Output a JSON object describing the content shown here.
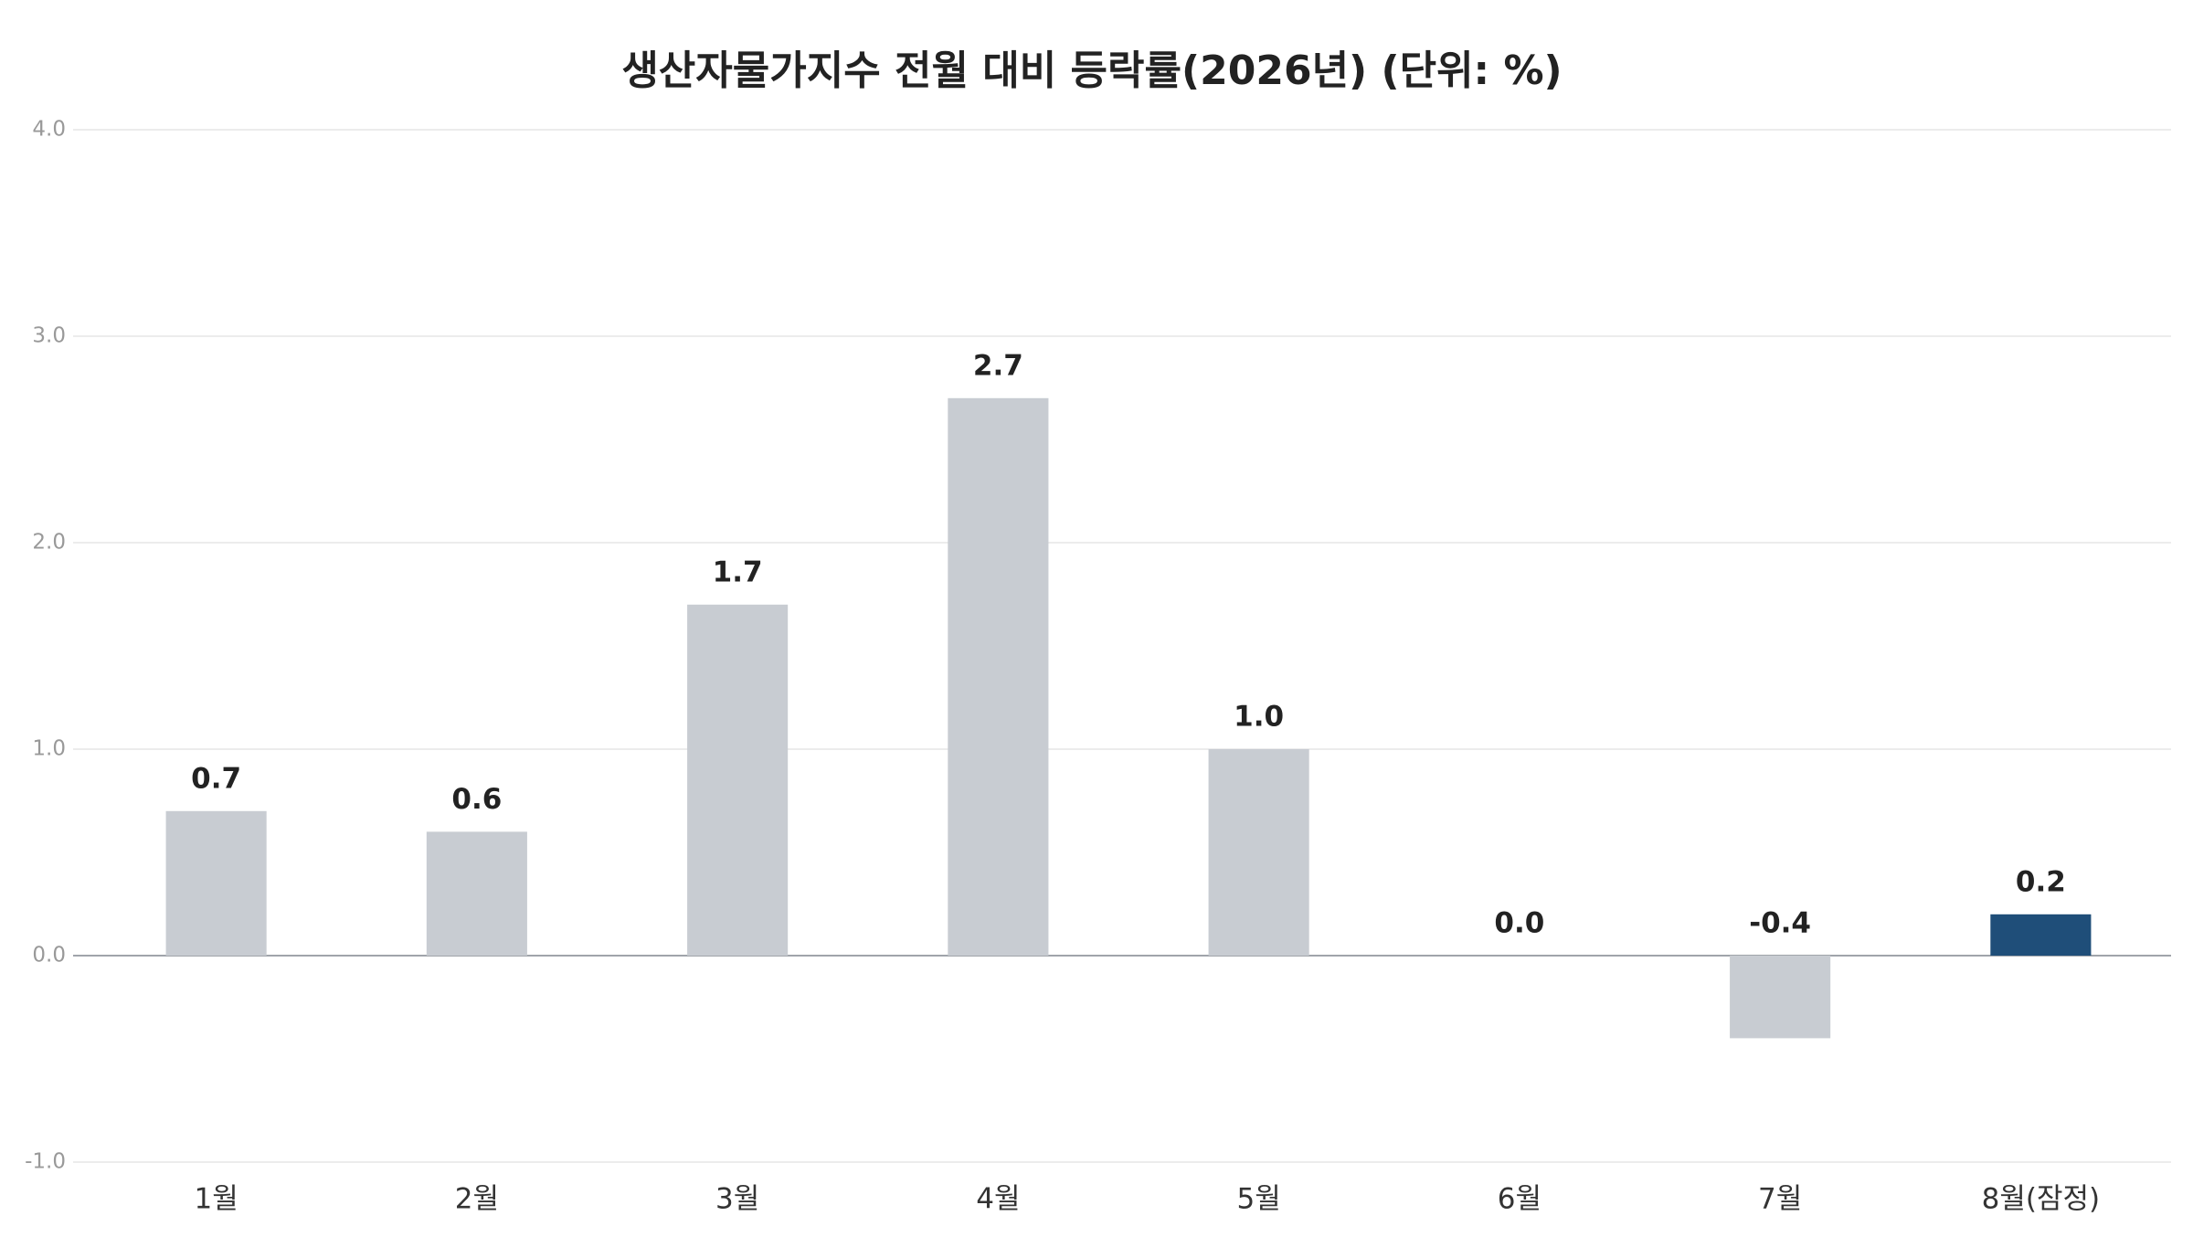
{
  "chart_data": {
    "type": "bar",
    "title": "생산자물가지수 전월 대비 등락률(2026년) (단위: %)",
    "categories": [
      "1월",
      "2월",
      "3월",
      "4월",
      "5월",
      "6월",
      "7월",
      "8월(잠정)"
    ],
    "values": [
      0.7,
      0.6,
      1.7,
      2.7,
      1.0,
      0.0,
      -0.4,
      0.2
    ],
    "value_labels": [
      "0.7",
      "0.6",
      "1.7",
      "2.7",
      "1.0",
      "0.0",
      "-0.4",
      "0.2"
    ],
    "colors": [
      "#c8ccd2",
      "#c8ccd2",
      "#c8ccd2",
      "#c8ccd2",
      "#c8ccd2",
      "#c8ccd2",
      "#c8ccd2",
      "#1f4e79"
    ],
    "ylim": [
      -1,
      4
    ],
    "yticks": [
      {
        "value": -1,
        "label": "-1.0"
      },
      {
        "value": 0,
        "label": "0.0"
      },
      {
        "value": 1,
        "label": "1.0"
      },
      {
        "value": 2,
        "label": "2.0"
      },
      {
        "value": 3,
        "label": "3.0"
      },
      {
        "value": 4,
        "label": "4.0"
      }
    ],
    "grid": true
  }
}
